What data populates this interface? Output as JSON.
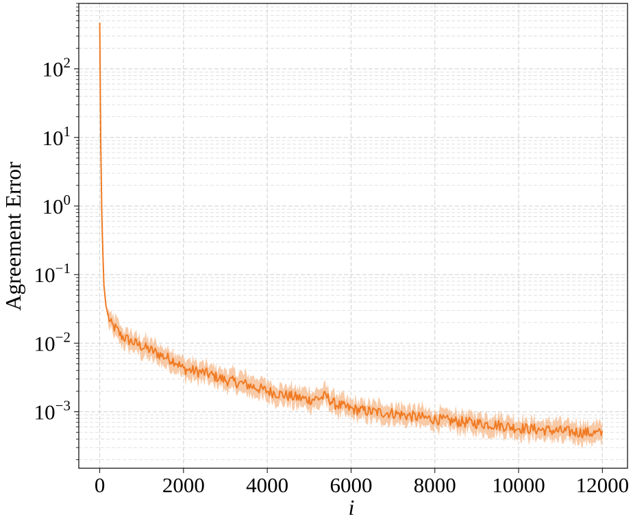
{
  "chart_data": {
    "type": "line",
    "title": "",
    "xlabel": "i",
    "ylabel": "Agreement Error",
    "xlim": [
      -500,
      12600
    ],
    "ylim": [
      0.00015,
      900
    ],
    "yscale": "log",
    "grid": true,
    "grid_style": "dashed",
    "xticks": [
      0,
      2000,
      4000,
      6000,
      8000,
      10000,
      12000
    ],
    "xtick_labels": [
      "0",
      "2000",
      "4000",
      "6000",
      "8000",
      "10000",
      "12000"
    ],
    "yticks": [
      {
        "value": 100,
        "base": "10",
        "exp": "2"
      },
      {
        "value": 10,
        "base": "10",
        "exp": "1"
      },
      {
        "value": 1,
        "base": "10",
        "exp": "0"
      },
      {
        "value": 0.1,
        "base": "10",
        "exp": "−1"
      },
      {
        "value": 0.01,
        "base": "10",
        "exp": "−2"
      },
      {
        "value": 0.001,
        "base": "10",
        "exp": "−3"
      }
    ],
    "colors": {
      "line": "#f07a22",
      "band": "#f6b88a"
    },
    "series": [
      {
        "x": [
          0,
          10,
          25,
          50,
          75,
          100,
          150,
          200,
          250,
          300,
          400,
          500,
          700,
          1000,
          1300,
          1500,
          1800,
          2000,
          2500,
          3000,
          3500,
          4000,
          4500,
          5000,
          5300,
          5400,
          5600,
          6000,
          6500,
          7000,
          7500,
          8000,
          8500,
          9000,
          9500,
          10000,
          10500,
          11000,
          11500,
          12000
        ],
        "y": [
          470,
          80,
          8,
          0.8,
          0.2,
          0.07,
          0.035,
          0.025,
          0.02,
          0.018,
          0.016,
          0.013,
          0.011,
          0.009,
          0.0075,
          0.0065,
          0.0055,
          0.0042,
          0.0037,
          0.0029,
          0.0025,
          0.002,
          0.0017,
          0.0015,
          0.0016,
          0.0017,
          0.0013,
          0.0011,
          0.001,
          0.00095,
          0.00085,
          0.00078,
          0.00072,
          0.00068,
          0.00064,
          0.00058,
          0.00055,
          0.00052,
          0.0005,
          0.00048
        ]
      }
    ]
  }
}
